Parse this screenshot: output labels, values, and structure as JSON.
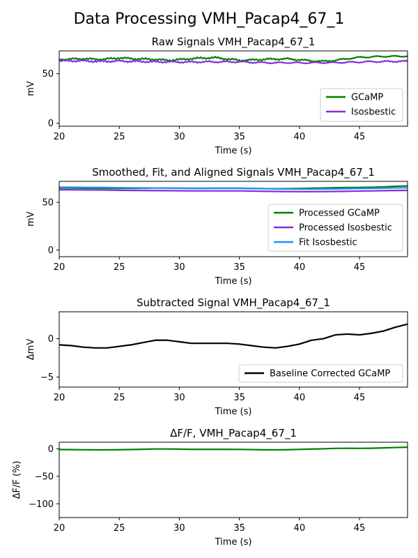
{
  "figure": {
    "title": "Data Processing VMH_Pacap4_67_1"
  },
  "chart_data": [
    {
      "type": "line",
      "title": "Raw Signals VMH_Pacap4_67_1",
      "xlabel": "Time (s)",
      "ylabel": "mV",
      "xlim": [
        20,
        49
      ],
      "ylim": [
        -3,
        73
      ],
      "xticks": [
        20,
        25,
        30,
        35,
        40,
        45
      ],
      "yticks": [
        0,
        50
      ],
      "grid": false,
      "legend_position": "bottom-right",
      "series": [
        {
          "name": "GCaMP",
          "color": "#008000",
          "noisy": true,
          "x": [
            20,
            21,
            22,
            23,
            24,
            25,
            26,
            27,
            28,
            29,
            30,
            31,
            32,
            33,
            34,
            35,
            36,
            37,
            38,
            39,
            40,
            41,
            42,
            43,
            44,
            45,
            46,
            47,
            48,
            49
          ],
          "y": [
            64.5,
            64.8,
            65.2,
            64.5,
            64.8,
            66.0,
            65.2,
            64.8,
            64.5,
            63.5,
            64.2,
            65.2,
            65.8,
            66.2,
            64.8,
            63.5,
            63.8,
            64.5,
            64.8,
            65.0,
            64.0,
            63.0,
            62.5,
            63.5,
            65.2,
            66.5,
            67.0,
            67.5,
            67.5,
            67.8
          ]
        },
        {
          "name": "Isosbestic",
          "color": "#8a2be2",
          "noisy": true,
          "x": [
            20,
            21,
            22,
            23,
            24,
            25,
            26,
            27,
            28,
            29,
            30,
            31,
            32,
            33,
            34,
            35,
            36,
            37,
            38,
            39,
            40,
            41,
            42,
            43,
            44,
            45,
            46,
            47,
            48,
            49
          ],
          "y": [
            63.0,
            63.0,
            63.0,
            62.5,
            62.5,
            62.8,
            62.5,
            62.3,
            62.0,
            62.0,
            61.8,
            61.8,
            62.0,
            62.0,
            62.0,
            62.0,
            61.5,
            61.2,
            61.0,
            61.2,
            61.0,
            61.0,
            61.2,
            61.2,
            61.5,
            61.8,
            62.2,
            62.2,
            62.5,
            62.5
          ]
        }
      ]
    },
    {
      "type": "line",
      "title": "Smoothed, Fit, and Aligned Signals VMH_Pacap4_67_1",
      "xlabel": "Time (s)",
      "ylabel": "mV",
      "xlim": [
        20,
        49
      ],
      "ylim": [
        -7,
        72
      ],
      "xticks": [
        20,
        25,
        30,
        35,
        40,
        45
      ],
      "yticks": [
        0,
        50
      ],
      "grid": false,
      "legend_position": "center-right",
      "series": [
        {
          "name": "Processed GCaMP",
          "color": "#008000",
          "x": [
            20,
            21,
            22,
            23,
            24,
            25,
            26,
            27,
            28,
            29,
            30,
            31,
            32,
            33,
            34,
            35,
            36,
            37,
            38,
            39,
            40,
            41,
            42,
            43,
            44,
            45,
            46,
            47,
            48,
            49
          ],
          "y": [
            65.0,
            64.9,
            64.8,
            64.7,
            64.6,
            64.6,
            64.7,
            64.8,
            65.0,
            65.0,
            64.8,
            64.7,
            64.7,
            64.8,
            64.8,
            64.8,
            64.6,
            64.4,
            64.2,
            64.3,
            64.5,
            64.8,
            65.0,
            65.3,
            65.5,
            65.6,
            65.8,
            66.2,
            66.8,
            67.2
          ]
        },
        {
          "name": "Processed Isosbestic",
          "color": "#8a2be2",
          "x": [
            20,
            21,
            22,
            23,
            24,
            25,
            26,
            27,
            28,
            29,
            30,
            31,
            32,
            33,
            34,
            35,
            36,
            37,
            38,
            39,
            40,
            41,
            42,
            43,
            44,
            45,
            46,
            47,
            48,
            49
          ],
          "y": [
            63.2,
            63.1,
            63.0,
            62.9,
            62.8,
            62.6,
            62.5,
            62.4,
            62.3,
            62.2,
            62.1,
            62.0,
            62.0,
            62.0,
            62.0,
            62.0,
            61.8,
            61.6,
            61.4,
            61.3,
            61.2,
            61.2,
            61.3,
            61.4,
            61.6,
            61.8,
            62.0,
            62.2,
            62.4,
            62.5
          ]
        },
        {
          "name": "Fit Isosbestic",
          "color": "#1e90ff",
          "x": [
            20,
            21,
            22,
            23,
            24,
            25,
            26,
            27,
            28,
            29,
            30,
            31,
            32,
            33,
            34,
            35,
            36,
            37,
            38,
            39,
            40,
            41,
            42,
            43,
            44,
            45,
            46,
            47,
            48,
            49
          ],
          "y": [
            65.8,
            65.8,
            65.7,
            65.6,
            65.5,
            65.3,
            65.2,
            65.1,
            65.0,
            64.9,
            64.8,
            64.7,
            64.7,
            64.7,
            64.7,
            64.7,
            64.5,
            64.3,
            64.1,
            64.0,
            63.9,
            63.9,
            64.0,
            64.1,
            64.3,
            64.5,
            64.7,
            64.9,
            65.1,
            65.2
          ]
        }
      ]
    },
    {
      "type": "line",
      "title": "Subtracted Signal VMH_Pacap4_67_1",
      "xlabel": "Time (s)",
      "ylabel": "ΔmV",
      "xlim": [
        20,
        49
      ],
      "ylim": [
        -6.3,
        3.5
      ],
      "xticks": [
        20,
        25,
        30,
        35,
        40,
        45
      ],
      "yticks": [
        -5,
        0
      ],
      "grid": false,
      "legend_position": "bottom-right",
      "series": [
        {
          "name": "Baseline Corrected GCaMP",
          "color": "#000000",
          "x": [
            20,
            21,
            22,
            23,
            24,
            25,
            26,
            27,
            28,
            29,
            30,
            31,
            32,
            33,
            34,
            35,
            36,
            37,
            38,
            39,
            40,
            41,
            42,
            43,
            44,
            45,
            46,
            47,
            48,
            49
          ],
          "y": [
            -0.8,
            -0.9,
            -1.1,
            -1.2,
            -1.2,
            -1.0,
            -0.8,
            -0.5,
            -0.2,
            -0.2,
            -0.4,
            -0.6,
            -0.6,
            -0.6,
            -0.6,
            -0.7,
            -0.9,
            -1.1,
            -1.2,
            -1.0,
            -0.7,
            -0.2,
            0.0,
            0.5,
            0.6,
            0.5,
            0.7,
            1.0,
            1.5,
            1.9
          ]
        }
      ]
    },
    {
      "type": "line",
      "title": "ΔF/F, VMH_Pacap4_67_1",
      "xlabel": "Time (s)",
      "ylabel": "ΔF/F (%)",
      "xlim": [
        20,
        49
      ],
      "ylim": [
        -125,
        12
      ],
      "xticks": [
        20,
        25,
        30,
        35,
        40,
        45
      ],
      "yticks": [
        -100,
        -50,
        0
      ],
      "grid": false,
      "legend_position": "none",
      "series": [
        {
          "color": "#008000",
          "x": [
            20,
            21,
            22,
            23,
            24,
            25,
            26,
            27,
            28,
            29,
            30,
            31,
            32,
            33,
            34,
            35,
            36,
            37,
            38,
            39,
            40,
            41,
            42,
            43,
            44,
            45,
            46,
            47,
            48,
            49
          ],
          "y": [
            -1.3,
            -1.5,
            -1.7,
            -1.9,
            -1.9,
            -1.6,
            -1.3,
            -0.8,
            -0.3,
            -0.3,
            -0.6,
            -1.0,
            -1.0,
            -1.0,
            -1.0,
            -1.1,
            -1.4,
            -1.8,
            -1.9,
            -1.6,
            -1.1,
            -0.4,
            0.0,
            0.8,
            1.0,
            0.8,
            1.1,
            1.7,
            2.4,
            3.0
          ]
        }
      ]
    }
  ]
}
